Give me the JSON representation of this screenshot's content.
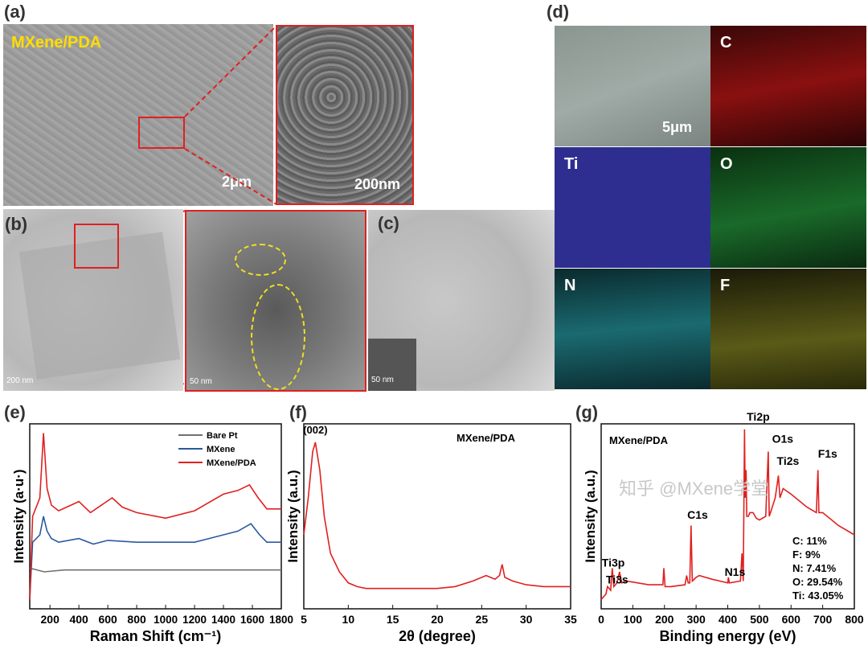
{
  "panels": {
    "a": "(a)",
    "b": "(b)",
    "c": "(c)",
    "d": "(d)",
    "e": "(e)",
    "f": "(f)",
    "g": "(g)"
  },
  "a": {
    "caption": "MXene/PDA",
    "scale_main": "2μm",
    "scale_inset": "200nm"
  },
  "b": {
    "scale_main": "200 nm",
    "scale_inset": "50 nm"
  },
  "c": {
    "scale": "50 nm"
  },
  "d": {
    "scale": "5μm",
    "maps": [
      "C",
      "Ti",
      "O",
      "N",
      "F"
    ],
    "colors": {
      "C": "#8a1010",
      "Ti": "#2a2a8a",
      "O": "#1a6a2a",
      "N": "#1a6a70",
      "F": "#6a6a1a"
    }
  },
  "watermark": "知乎 @MXene学堂",
  "chart_data": [
    {
      "type": "line",
      "xlabel": "Raman Shift (cm⁻¹)",
      "ylabel": "Intensity (a·u·)",
      "xlim": [
        60,
        1800
      ],
      "ylim": [
        0,
        100
      ],
      "xticks": [
        200,
        400,
        600,
        800,
        1000,
        1200,
        1400,
        1600,
        1800
      ],
      "legend": "top-right",
      "series": [
        {
          "name": "Bare Pt",
          "color": "#707070",
          "x": [
            60,
            160,
            300,
            600,
            1000,
            1400,
            1800
          ],
          "y": [
            22,
            20,
            21,
            21,
            21,
            21,
            21
          ]
        },
        {
          "name": "MXene",
          "color": "#2a5aa0",
          "x": [
            60,
            80,
            130,
            155,
            180,
            210,
            260,
            400,
            500,
            600,
            800,
            1000,
            1200,
            1400,
            1500,
            1590,
            1650,
            1700,
            1800
          ],
          "y": [
            5,
            36,
            40,
            50,
            42,
            38,
            36,
            38,
            35,
            37,
            36,
            36,
            36,
            40,
            42,
            46,
            40,
            36,
            36
          ]
        },
        {
          "name": "MXene/PDA",
          "color": "#e02020",
          "x": [
            60,
            80,
            130,
            155,
            180,
            210,
            260,
            400,
            480,
            630,
            700,
            800,
            1000,
            1200,
            1400,
            1500,
            1580,
            1640,
            1700,
            1800
          ],
          "y": [
            5,
            50,
            60,
            95,
            65,
            56,
            53,
            58,
            52,
            60,
            55,
            52,
            49,
            53,
            62,
            64,
            67,
            60,
            54,
            54
          ]
        }
      ]
    },
    {
      "type": "line",
      "title": "MXene/PDA",
      "xlabel": "2θ (degree)",
      "ylabel": "Intensity (a.u.)",
      "xlim": [
        5,
        35
      ],
      "ylim": [
        0,
        100
      ],
      "xticks": [
        5,
        10,
        15,
        20,
        25,
        30,
        35
      ],
      "annotations": [
        "(002)"
      ],
      "series": [
        {
          "color": "#e02020",
          "x": [
            5,
            5.5,
            6,
            6.3,
            6.8,
            7.3,
            8,
            9,
            10,
            11,
            12,
            15,
            20,
            22,
            24,
            25.5,
            26.5,
            27,
            27.3,
            27.6,
            28.5,
            30,
            32,
            35
          ],
          "y": [
            40,
            60,
            85,
            90,
            75,
            50,
            30,
            20,
            14,
            12,
            11,
            11,
            11,
            12,
            15,
            18,
            16,
            18,
            24,
            17,
            15,
            13,
            12,
            12
          ]
        }
      ]
    },
    {
      "type": "line",
      "title": "MXene/PDA",
      "xlabel": "Binding energy (eV)",
      "ylabel": "Intensity (a.u.)",
      "xlim": [
        0,
        800
      ],
      "ylim": [
        0,
        100
      ],
      "xticks": [
        0,
        100,
        200,
        300,
        400,
        500,
        600,
        700,
        800
      ],
      "annotations": [
        "Ti3p",
        "Ti3s",
        "C1s",
        "N1s",
        "Ti2p",
        "O1s",
        "Ti2s",
        "F1s"
      ],
      "composition": [
        "C: 11%",
        "F: 9%",
        "N: 7.41%",
        "O: 29.54%",
        "Ti: 43.05%"
      ],
      "series": [
        {
          "color": "#e02020",
          "x": [
            0,
            15,
            20,
            30,
            35,
            40,
            50,
            58,
            65,
            80,
            150,
            195,
            198,
            202,
            220,
            265,
            270,
            275,
            280,
            284,
            288,
            300,
            310,
            350,
            400,
            402,
            405,
            440,
            445,
            449,
            453,
            455,
            458,
            460,
            465,
            470,
            480,
            490,
            500,
            520,
            528,
            531,
            535,
            550,
            560,
            565,
            575,
            600,
            650,
            680,
            685,
            688,
            700,
            750,
            800
          ],
          "y": [
            5,
            8,
            12,
            10,
            22,
            12,
            14,
            20,
            14,
            15,
            13,
            13,
            22,
            12,
            12,
            13,
            18,
            14,
            14,
            45,
            15,
            17,
            18,
            16,
            14,
            17,
            14,
            15,
            30,
            15,
            97,
            60,
            75,
            50,
            50,
            52,
            52,
            49,
            48,
            50,
            85,
            50,
            52,
            60,
            72,
            60,
            65,
            62,
            55,
            52,
            75,
            52,
            52,
            45,
            40
          ]
        }
      ]
    }
  ]
}
